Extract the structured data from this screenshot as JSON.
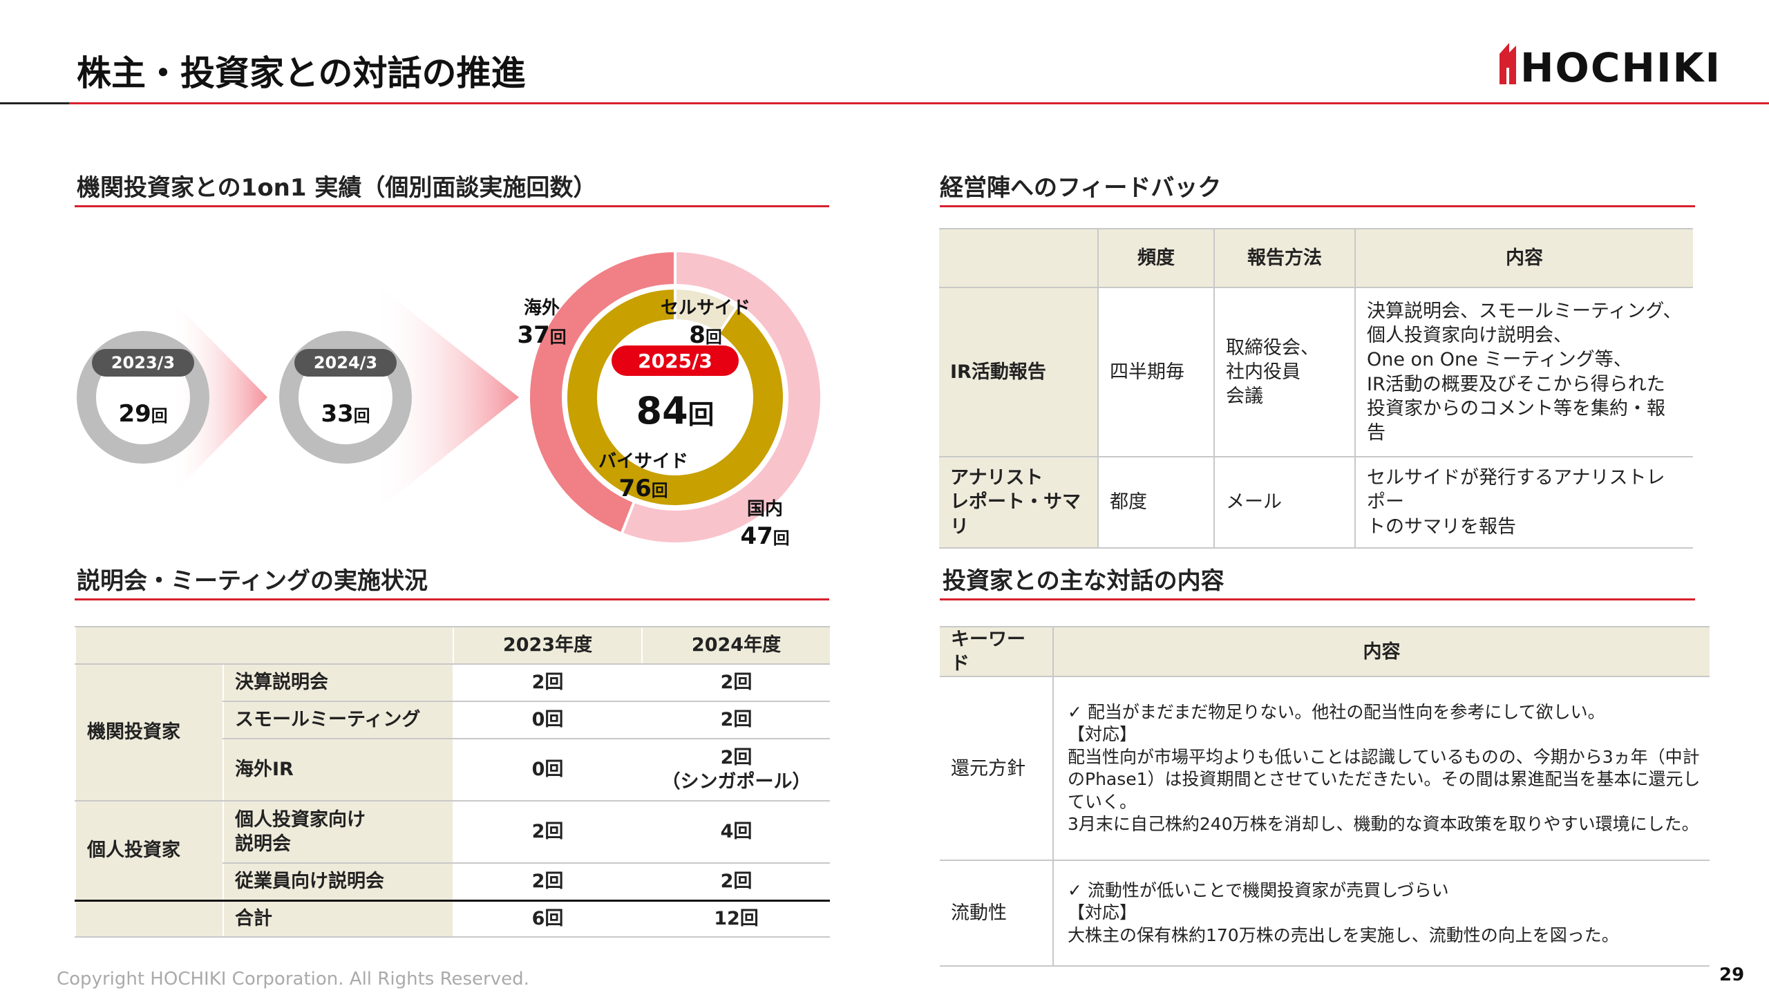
{
  "header": {
    "title": "株主・投資家との対話の推進",
    "logo": "HOCHIKI"
  },
  "one_on_one": {
    "heading": "機関投資家との1on1 実績（個別面談実施回数）",
    "years": [
      {
        "label": "2023/3",
        "count": 29,
        "unit": "回"
      },
      {
        "label": "2024/3",
        "count": 33,
        "unit": "回"
      }
    ],
    "current": {
      "label": "2025/3",
      "count": 84,
      "unit": "回",
      "outer": [
        {
          "name": "国内",
          "count": 47,
          "unit": "回",
          "color": "#f9c3cc"
        },
        {
          "name": "海外",
          "count": 37,
          "unit": "回",
          "color": "#f08086"
        }
      ],
      "inner": [
        {
          "name": "セルサイド",
          "count": 8,
          "unit": "回",
          "color": "#ede7d0"
        },
        {
          "name": "バイサイド",
          "count": 76,
          "unit": "回",
          "color": "#c8a000"
        }
      ]
    }
  },
  "feedback": {
    "heading": "経営陣へのフィードバック",
    "columns": [
      "頻度",
      "報告方法",
      "内容"
    ],
    "rows": [
      {
        "name": "IR活動報告",
        "cells": [
          "四半期毎",
          "取締役会、\n社内役員\n会議",
          "決算説明会、スモールミーティング、\n個人投資家向け説明会、\nOne on One ミーティング等、\nIR活動の概要及びそこから得られた\n投資家からのコメント等を集約・報告"
        ]
      },
      {
        "name": "アナリスト\nレポート・サマリ",
        "cells": [
          "都度",
          "メール",
          "セルサイドが発行するアナリストレポー\nトのサマリを報告"
        ]
      }
    ]
  },
  "meetings": {
    "heading": "説明会・ミーティングの実施状況",
    "columns": [
      "2023年度",
      "2024年度"
    ],
    "groups": [
      {
        "name": "機関投資家",
        "rows": [
          {
            "item": "決算説明会",
            "values": [
              "2回",
              "2回"
            ]
          },
          {
            "item": "スモールミーティング",
            "values": [
              "0回",
              "2回"
            ]
          },
          {
            "item": "海外IR",
            "values": [
              "0回",
              "2回\n（シンガポール）"
            ]
          }
        ]
      },
      {
        "name": "個人投資家",
        "rows": [
          {
            "item": "個人投資家向け\n説明会",
            "values": [
              "2回",
              "4回"
            ]
          },
          {
            "item": "従業員向け説明会",
            "values": [
              "2回",
              "2回"
            ]
          }
        ]
      }
    ],
    "total": {
      "item": "合計",
      "values": [
        "6回",
        "12回"
      ]
    }
  },
  "dialogue": {
    "heading": "投資家との主な対話の内容",
    "columns": [
      "キーワード",
      "内容"
    ],
    "rows": [
      {
        "keyword": "還元方針",
        "content": "✓ 配当がまだまだ物足りない。他社の配当性向を参考にして欲しい。\n【対応】\n配当性向が市場平均よりも低いことは認識しているものの、今期から3ヵ年（中計のPhase1）は投資期間とさせていただきたい。その間は累進配当を基本に還元していく。\n3月末に自己株約240万株を消却し、機動的な資本政策を取りやすい環境にした。"
      },
      {
        "keyword": "流動性",
        "content": "✓ 流動性が低いことで機関投資家が売買しづらい\n【対応】\n大株主の保有株約170万株の売出しを実施し、流動性の向上を図った。"
      }
    ]
  },
  "footer": {
    "copyright": "Copyright HOCHIKI Corporation. All Rights Reserved.",
    "page": 29
  }
}
